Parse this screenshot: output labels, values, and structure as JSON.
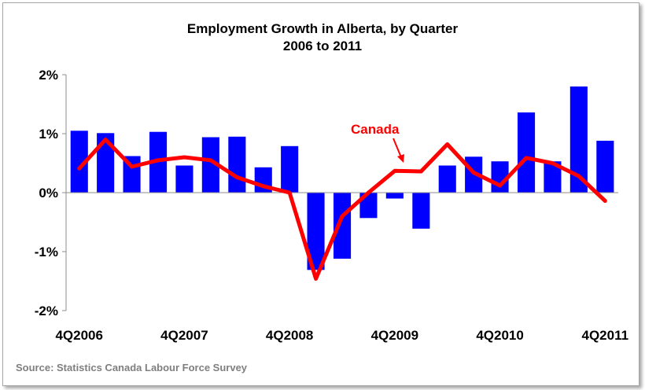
{
  "chart_data": {
    "type": "bar",
    "title": "Employment Growth in Alberta, by Quarter",
    "subtitle": "2006 to 2011",
    "x_tick_labels": [
      "4Q2006",
      "4Q2007",
      "4Q2008",
      "4Q2009",
      "4Q2010",
      "4Q2011"
    ],
    "y_tick_labels": [
      "2%",
      "1%",
      "0%",
      "-1%",
      "-2%"
    ],
    "y_ticks": [
      2,
      1,
      0,
      -1,
      -2
    ],
    "ylim": [
      -2,
      2
    ],
    "grid": false,
    "bar_series": {
      "color": "#0000ff",
      "values": [
        1.05,
        1.01,
        0.62,
        1.03,
        0.46,
        0.94,
        0.95,
        0.43,
        0.79,
        -1.31,
        -1.12,
        -0.43,
        -0.1,
        -0.61,
        0.46,
        0.61,
        0.53,
        1.36,
        0.53,
        1.8,
        0.88
      ]
    },
    "line_series": {
      "name": "Canada",
      "color": "#ff0000",
      "values": [
        0.41,
        0.9,
        0.44,
        0.55,
        0.6,
        0.55,
        0.26,
        0.11,
        0.0,
        -1.46,
        -0.4,
        0.0,
        0.37,
        0.36,
        0.82,
        0.34,
        0.12,
        0.59,
        0.5,
        0.28,
        -0.14
      ]
    }
  },
  "source": "Source:  Statistics Canada Labour Force Survey"
}
